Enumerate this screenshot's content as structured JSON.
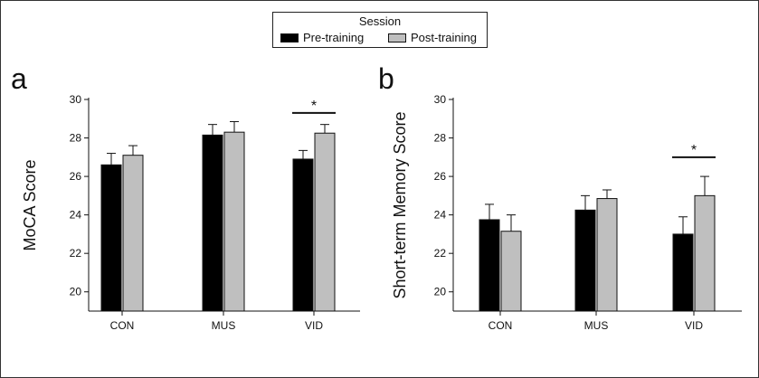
{
  "legend": {
    "title": "Session",
    "items": [
      {
        "label": "Pre-training",
        "color": "#000000"
      },
      {
        "label": "Post-training",
        "color": "#bfbfbf"
      }
    ]
  },
  "chart_data": [
    {
      "type": "bar",
      "panel_label": "a",
      "ylabel": "MoCA Score",
      "xlabel": "",
      "ylim": [
        19,
        30
      ],
      "yticks": [
        20,
        22,
        24,
        26,
        28,
        30
      ],
      "categories": [
        "CON",
        "MUS",
        "VID"
      ],
      "series": [
        {
          "name": "Pre-training",
          "color": "#000000",
          "values": [
            26.6,
            28.15,
            26.9
          ],
          "errors": [
            0.6,
            0.55,
            0.45
          ]
        },
        {
          "name": "Post-training",
          "color": "#bfbfbf",
          "values": [
            27.1,
            28.3,
            28.25
          ],
          "errors": [
            0.5,
            0.55,
            0.45
          ]
        }
      ],
      "significance": [
        {
          "category": "VID",
          "label": "*",
          "y": 29.3
        }
      ],
      "grid": false
    },
    {
      "type": "bar",
      "panel_label": "b",
      "ylabel": "Short-term Memory Score",
      "xlabel": "",
      "ylim": [
        19,
        30
      ],
      "yticks": [
        20,
        22,
        24,
        26,
        28,
        30
      ],
      "categories": [
        "CON",
        "MUS",
        "VID"
      ],
      "series": [
        {
          "name": "Pre-training",
          "color": "#000000",
          "values": [
            23.75,
            24.25,
            23.0
          ],
          "errors": [
            0.8,
            0.75,
            0.9
          ]
        },
        {
          "name": "Post-training",
          "color": "#bfbfbf",
          "values": [
            23.15,
            24.85,
            25.0
          ],
          "errors": [
            0.85,
            0.45,
            1.0
          ]
        }
      ],
      "significance": [
        {
          "category": "VID",
          "label": "*",
          "y": 27.0
        }
      ],
      "grid": false
    }
  ]
}
